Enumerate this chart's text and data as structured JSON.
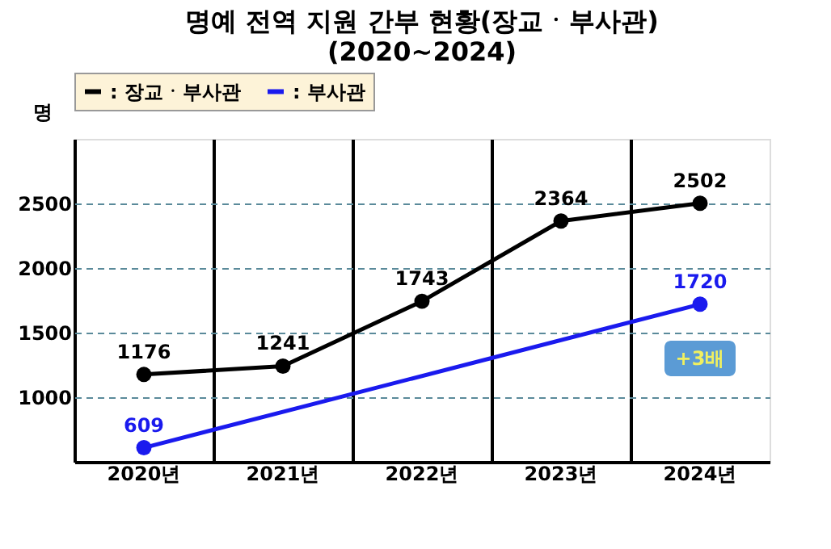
{
  "chart_data": {
    "type": "line",
    "title": "명예 전역 지원 간부 현황(장교ㆍ부사관)",
    "subtitle": "(2020~2024)",
    "ylabel": "명",
    "categories": [
      "2020년",
      "2021년",
      "2022년",
      "2023년",
      "2024년"
    ],
    "series": [
      {
        "name": ": 장교ㆍ부사관",
        "color": "#000000",
        "values": [
          1176,
          1241,
          1743,
          2364,
          2502
        ]
      },
      {
        "name": ": 부사관",
        "color": "#1a1aee",
        "values": [
          609,
          null,
          null,
          null,
          1720
        ]
      }
    ],
    "ylim": [
      500,
      3000
    ],
    "yticks": [
      1000,
      1500,
      2000,
      2500
    ],
    "grid": true,
    "legend": "top left",
    "marker": "circle",
    "line_style": "solid",
    "data_labels": true,
    "annotations": [
      {
        "text": "+3배",
        "x": "2024년",
        "y": 1300
      }
    ]
  }
}
